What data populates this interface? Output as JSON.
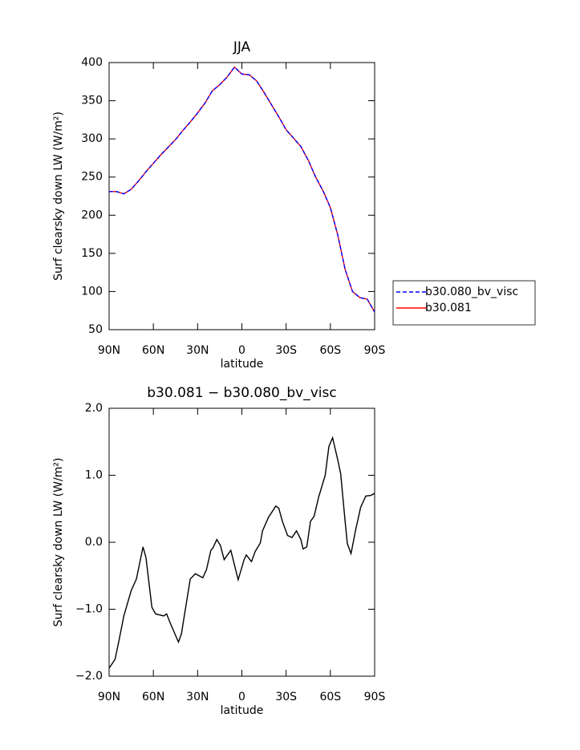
{
  "chart_data": [
    {
      "type": "line",
      "title": "JJA",
      "xlabel": "latitude",
      "ylabel": "Surf clearsky down LW (W/m²)",
      "x": [
        90,
        85,
        80,
        75,
        70,
        65,
        60,
        55,
        50,
        45,
        40,
        35,
        30,
        25,
        20,
        15,
        10,
        5,
        0,
        -5,
        -10,
        -15,
        -20,
        -25,
        -30,
        -35,
        -40,
        -45,
        -50,
        -55,
        -60,
        -65,
        -70,
        -75,
        -80,
        -85,
        -90
      ],
      "series": [
        {
          "name": "b30.080_bv_visc",
          "color": "#0000ff",
          "linestyle": "dashed",
          "values": [
            231,
            231,
            228,
            234,
            245,
            257,
            268,
            279,
            289,
            299,
            311,
            322,
            334,
            347,
            363,
            371,
            381,
            394,
            385,
            384,
            376,
            361,
            345,
            329,
            312,
            301,
            290,
            272,
            250,
            232,
            210,
            174,
            129,
            100,
            92,
            90,
            73
          ]
        },
        {
          "name": "b30.081",
          "color": "#ff0000",
          "linestyle": "solid",
          "values": [
            231,
            231,
            228,
            234,
            245,
            257,
            268,
            279,
            289,
            299,
            311,
            322,
            334,
            347,
            363,
            371,
            381,
            394,
            385,
            384,
            376,
            361,
            345,
            329,
            312,
            301,
            290,
            272,
            250,
            232,
            210,
            174,
            129,
            100,
            92,
            90,
            73
          ]
        }
      ],
      "xlim": [
        90,
        -90
      ],
      "xticks": [
        {
          "value": 90,
          "label": "90N"
        },
        {
          "value": 60,
          "label": "60N"
        },
        {
          "value": 30,
          "label": "30N"
        },
        0,
        {
          "value": -30,
          "label": "30S"
        },
        {
          "value": -60,
          "label": "60S"
        },
        {
          "value": -90,
          "label": "90S"
        }
      ],
      "ylim": [
        50,
        400
      ],
      "yticks": [
        50,
        100,
        150,
        200,
        250,
        300,
        350,
        400
      ],
      "legend": "outside-right"
    },
    {
      "type": "line",
      "title": "b30.081 − b30.080_bv_visc",
      "xlabel": "latitude",
      "ylabel": "Surf clearsky down LW (W/m²)",
      "x": [
        90,
        86,
        83.5,
        80,
        75,
        71.5,
        67,
        65,
        61,
        58.5,
        53,
        51,
        48.5,
        43,
        41,
        35,
        31.5,
        26.5,
        24,
        21,
        19.5,
        17,
        14.5,
        12,
        7.5,
        2.5,
        -1.5,
        -3,
        -6.5,
        -9,
        -12.5,
        -14,
        -18,
        -23,
        -25,
        -27.5,
        -31,
        -34,
        -37,
        -40,
        -41.5,
        -44,
        -46.5,
        -49,
        -52,
        -56.5,
        -59,
        -61.5,
        -65,
        -67,
        -70,
        -71.5,
        -74,
        -77,
        -80.5,
        -84,
        -87.5,
        -90
      ],
      "series": [
        {
          "color": "#000000",
          "linestyle": "solid",
          "values": [
            -1.88,
            -1.75,
            -1.49,
            -1.1,
            -0.72,
            -0.55,
            -0.07,
            -0.23,
            -0.97,
            -1.07,
            -1.1,
            -1.07,
            -1.21,
            -1.49,
            -1.37,
            -0.55,
            -0.47,
            -0.53,
            -0.41,
            -0.12,
            -0.08,
            0.04,
            -0.05,
            -0.26,
            -0.12,
            -0.56,
            -0.26,
            -0.19,
            -0.29,
            -0.14,
            -0.01,
            0.17,
            0.37,
            0.54,
            0.51,
            0.31,
            0.1,
            0.07,
            0.17,
            0.04,
            -0.1,
            -0.07,
            0.31,
            0.39,
            0.67,
            1.0,
            1.43,
            1.56,
            1.23,
            1.02,
            0.31,
            -0.02,
            -0.17,
            0.17,
            0.52,
            0.69,
            0.7,
            0.73
          ]
        }
      ],
      "xlim": [
        90,
        -90
      ],
      "xticks": [
        {
          "value": 90,
          "label": "90N"
        },
        {
          "value": 60,
          "label": "60N"
        },
        {
          "value": 30,
          "label": "30N"
        },
        0,
        {
          "value": -30,
          "label": "30S"
        },
        {
          "value": -60,
          "label": "60S"
        },
        {
          "value": -90,
          "label": "90S"
        }
      ],
      "ylim": [
        -2,
        2
      ],
      "yticks": [
        {
          "value": -2,
          "label": "−2.0"
        },
        {
          "value": -1,
          "label": "−1.0"
        },
        {
          "value": 0,
          "label": "0.0"
        },
        {
          "value": 1,
          "label": "1.0"
        },
        {
          "value": 2,
          "label": "2.0"
        }
      ]
    }
  ]
}
